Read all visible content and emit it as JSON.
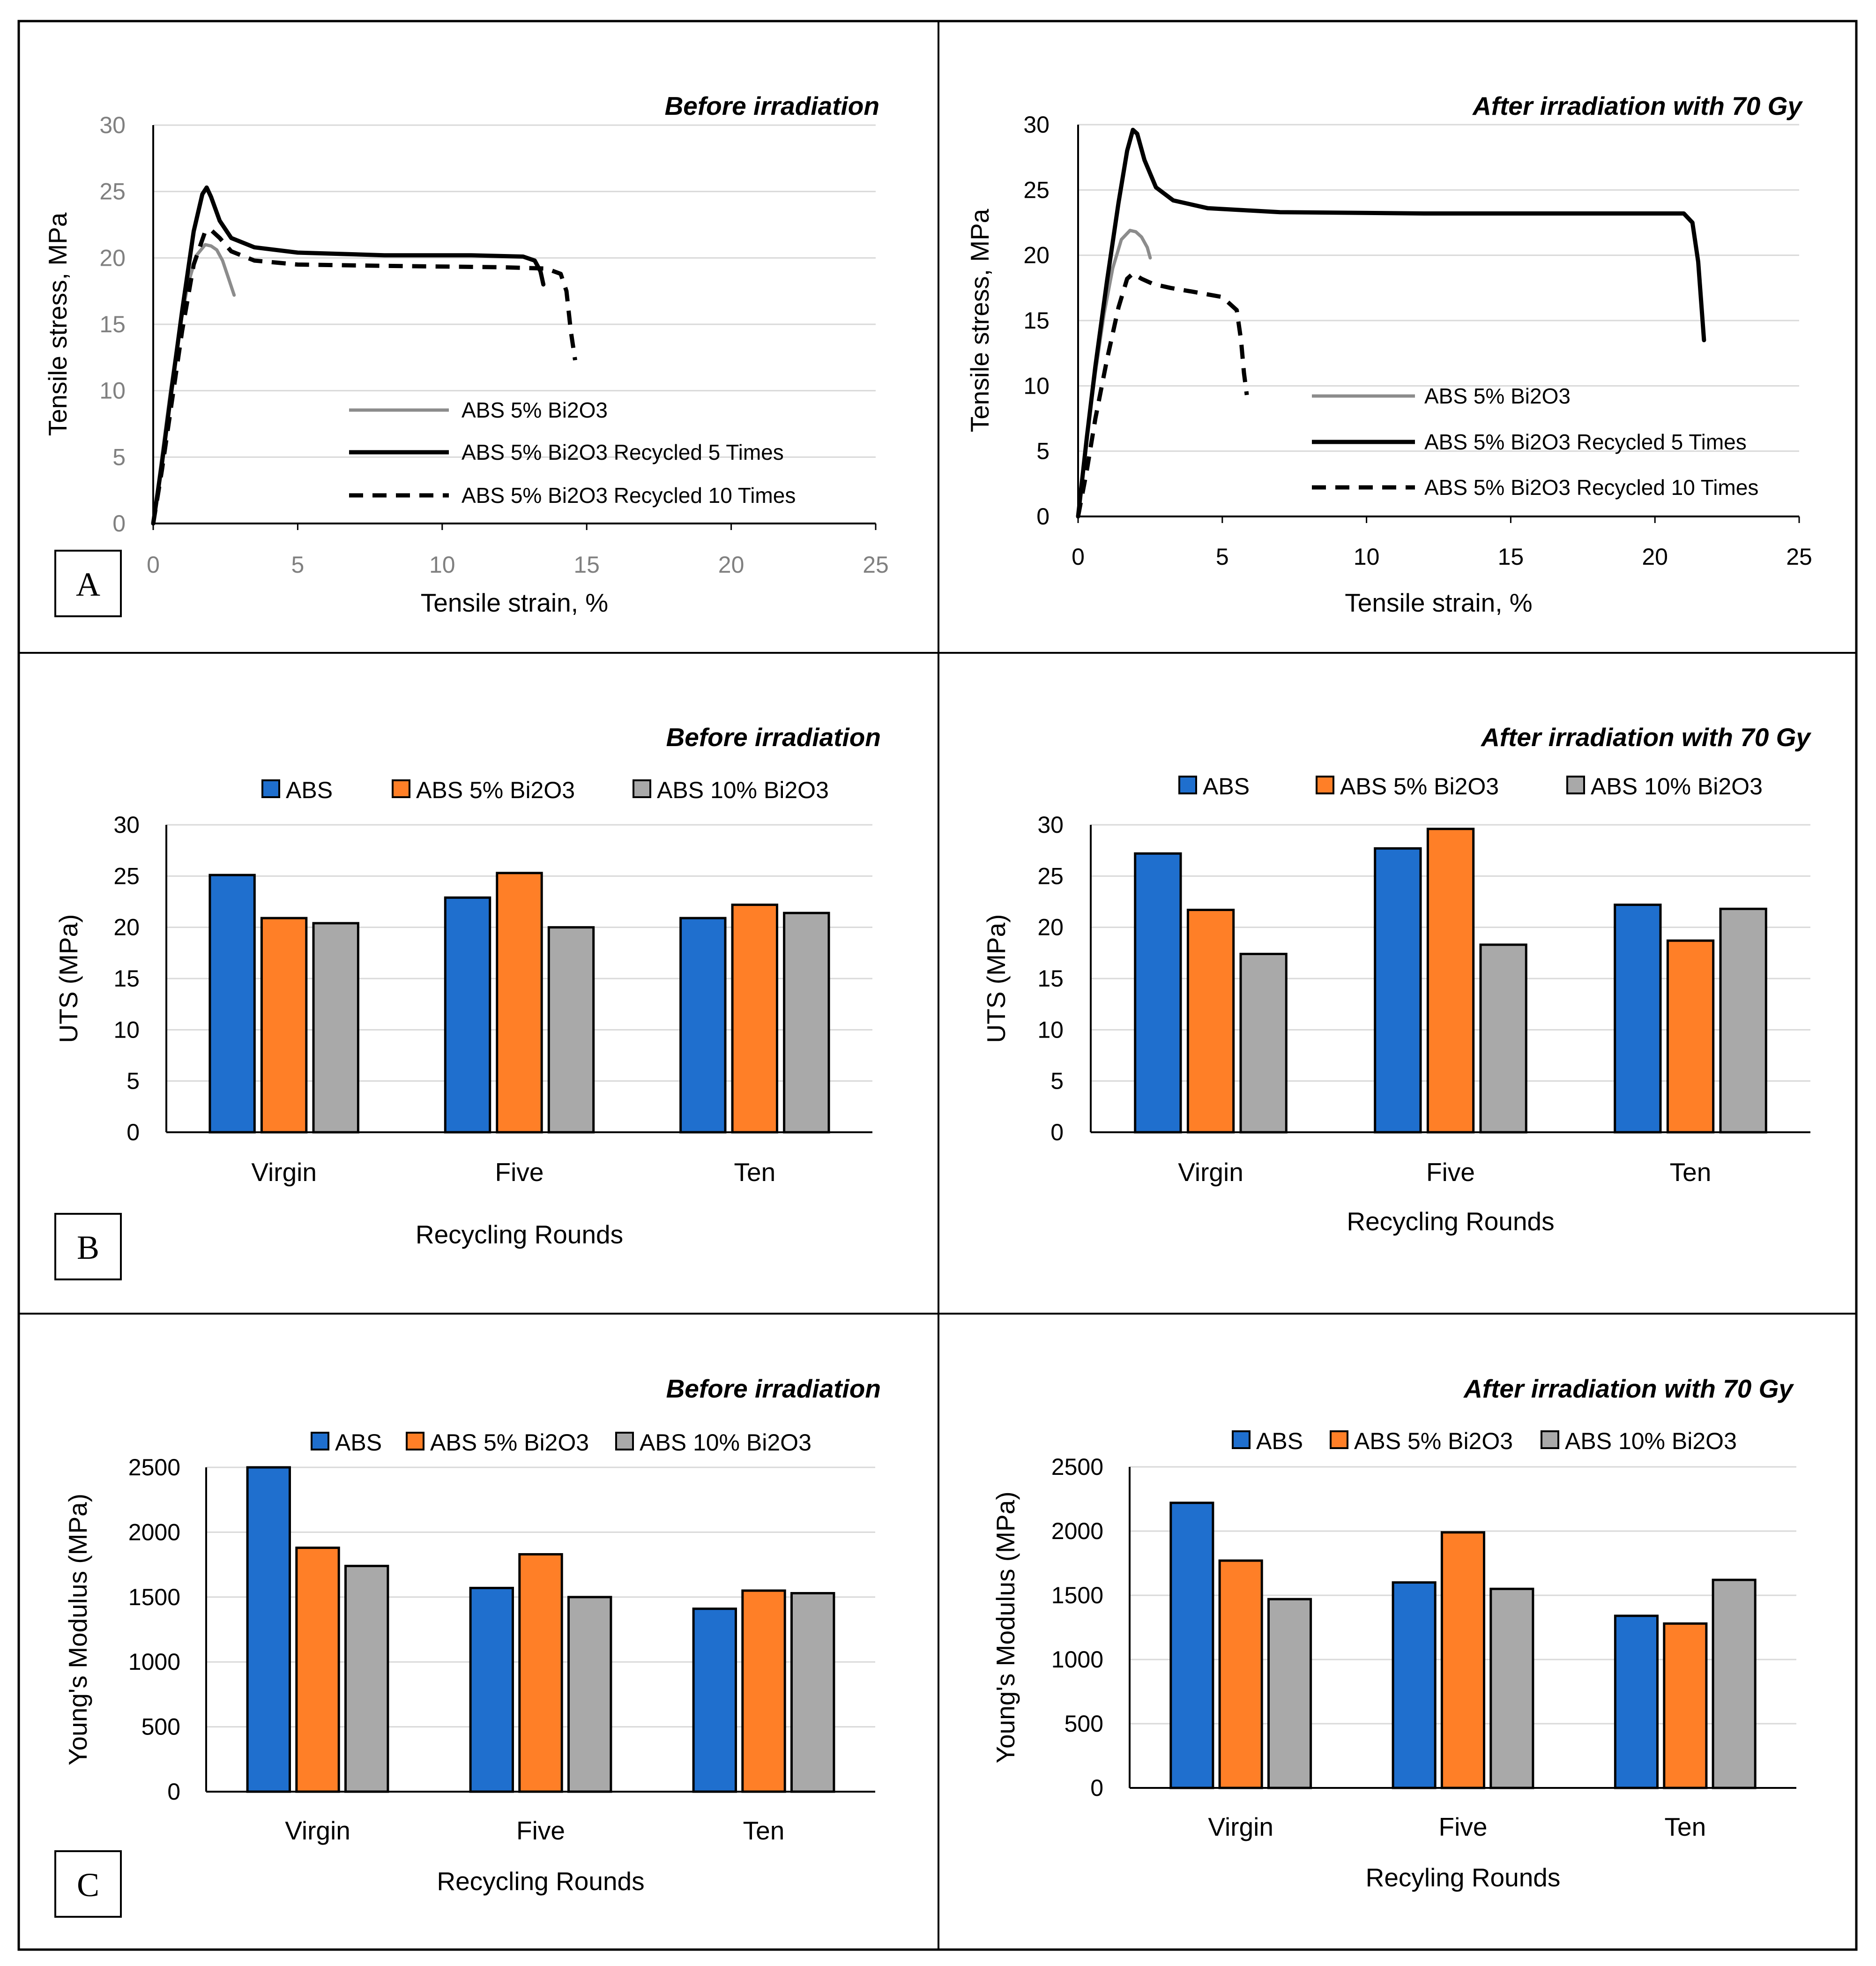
{
  "panel_labels": [
    "A",
    "B",
    "C"
  ],
  "colors": {
    "abs": "#1f6fce",
    "abs5": "#ff7f27",
    "abs10": "#a9a9a9",
    "line_grey": "#8c8c8c",
    "line_black": "#000000",
    "grid": "#d9d9d9",
    "tick_grey": "#808080",
    "tick_dark": "#000000"
  },
  "chart_data": [
    {
      "id": "a-before",
      "type": "line",
      "title": "Before irradiation",
      "xlabel": "Tensile strain, %",
      "ylabel": "Tensile stress, MPa",
      "xlim": [
        0,
        25
      ],
      "ylim": [
        0,
        30
      ],
      "xticks": [
        "0",
        "5",
        "10",
        "15",
        "20",
        "25"
      ],
      "yticks": [
        "0",
        "5",
        "10",
        "15",
        "20",
        "25",
        "30"
      ],
      "series": [
        {
          "name": "ABS 5% Bi2O3",
          "style": "grey",
          "x": [
            0,
            0.3,
            0.6,
            0.9,
            1.2,
            1.5,
            1.8,
            2.0,
            2.2,
            2.4,
            2.6,
            2.8
          ],
          "y": [
            0,
            5,
            10,
            14.5,
            18,
            20.2,
            21,
            20.9,
            20.6,
            19.8,
            18.5,
            17.2
          ]
        },
        {
          "name": "ABS 5% Bi2O3 Recycled 5 Times",
          "style": "solid",
          "x": [
            0,
            0.3,
            0.6,
            1.0,
            1.4,
            1.7,
            1.85,
            2.0,
            2.3,
            2.7,
            3.5,
            5,
            8,
            11,
            12.8,
            13.2,
            13.4,
            13.5
          ],
          "y": [
            0,
            4.5,
            9.5,
            16,
            22,
            24.8,
            25.3,
            24.6,
            22.8,
            21.5,
            20.8,
            20.4,
            20.2,
            20.2,
            20.1,
            19.8,
            19.0,
            18.0
          ]
        },
        {
          "name": "ABS 5% Bi2O3 Recycled 10 Times",
          "style": "dash",
          "x": [
            0,
            0.3,
            0.6,
            1.0,
            1.4,
            1.8,
            2.0,
            2.3,
            2.7,
            3.5,
            5,
            8,
            12,
            13.6,
            14.1,
            14.3,
            14.45,
            14.6
          ],
          "y": [
            0,
            4,
            8.5,
            14.5,
            19.5,
            22.0,
            22.1,
            21.5,
            20.5,
            19.8,
            19.5,
            19.4,
            19.3,
            19.2,
            18.8,
            17.5,
            14.5,
            12.3
          ]
        }
      ]
    },
    {
      "id": "a-after",
      "type": "line",
      "title": "After irradiation with 70 Gy",
      "xlabel": "Tensile strain, %",
      "ylabel": "Tensile stress, MPa",
      "xlim": [
        0,
        25
      ],
      "ylim": [
        0,
        30
      ],
      "xticks": [
        "0",
        "5",
        "10",
        "15",
        "20",
        "25"
      ],
      "yticks": [
        "0",
        "5",
        "10",
        "15",
        "20",
        "25",
        "30"
      ],
      "series": [
        {
          "name": "ABS 5% Bi2O3",
          "style": "grey",
          "x": [
            0,
            0.3,
            0.6,
            0.9,
            1.2,
            1.5,
            1.8,
            2.0,
            2.2,
            2.4,
            2.5
          ],
          "y": [
            0,
            6,
            11,
            15.5,
            19,
            21.2,
            21.9,
            21.8,
            21.4,
            20.6,
            19.8
          ]
        },
        {
          "name": "ABS 5% Bi2O3 Recycled 5 Times",
          "style": "solid",
          "x": [
            0,
            0.3,
            0.6,
            1.0,
            1.4,
            1.7,
            1.9,
            2.05,
            2.3,
            2.7,
            3.3,
            4.5,
            7,
            12,
            18,
            21.0,
            21.3,
            21.5,
            21.6,
            21.7
          ],
          "y": [
            0,
            6,
            11.5,
            18,
            24,
            28,
            29.6,
            29.3,
            27.3,
            25.2,
            24.2,
            23.6,
            23.3,
            23.2,
            23.2,
            23.2,
            22.5,
            19.5,
            16.5,
            13.5
          ]
        },
        {
          "name": "ABS 5% Bi2O3 Recycled 10 Times",
          "style": "dash",
          "x": [
            0,
            0.3,
            0.6,
            1.0,
            1.4,
            1.7,
            1.9,
            2.2,
            2.6,
            3.2,
            4.0,
            5.0,
            5.5,
            5.65,
            5.75,
            5.85
          ],
          "y": [
            0,
            3.5,
            7.5,
            12,
            16,
            18.2,
            18.6,
            18.2,
            17.8,
            17.5,
            17.2,
            16.8,
            15.8,
            13.5,
            11,
            9.3
          ]
        }
      ]
    },
    {
      "id": "b-before",
      "type": "bar",
      "title": "Before irradiation",
      "xlabel": "Recycling Rounds",
      "ylabel": "UTS (MPa)",
      "categories": [
        "Virgin",
        "Five",
        "Ten"
      ],
      "ylim": [
        0,
        30
      ],
      "yticks": [
        "0",
        "5",
        "10",
        "15",
        "20",
        "25",
        "30"
      ],
      "series": [
        {
          "name": "ABS",
          "values": [
            25.1,
            22.9,
            20.9
          ]
        },
        {
          "name": "ABS 5% Bi2O3",
          "values": [
            20.9,
            25.3,
            22.2
          ]
        },
        {
          "name": "ABS 10% Bi2O3",
          "values": [
            20.4,
            20.0,
            21.4
          ]
        }
      ]
    },
    {
      "id": "b-after",
      "type": "bar",
      "title": "After irradiation with 70 Gy",
      "xlabel": "Recycling Rounds",
      "ylabel": "UTS (MPa)",
      "categories": [
        "Virgin",
        "Five",
        "Ten"
      ],
      "ylim": [
        0,
        30
      ],
      "yticks": [
        "0",
        "5",
        "10",
        "15",
        "20",
        "25",
        "30"
      ],
      "series": [
        {
          "name": "ABS",
          "values": [
            27.2,
            27.7,
            22.2
          ]
        },
        {
          "name": "ABS 5% Bi2O3",
          "values": [
            21.7,
            29.6,
            18.7
          ]
        },
        {
          "name": "ABS 10% Bi2O3",
          "values": [
            17.4,
            18.3,
            21.8
          ]
        }
      ]
    },
    {
      "id": "c-before",
      "type": "bar",
      "title": "Before irradiation",
      "xlabel": "Recycling Rounds",
      "ylabel": "Young's Modulus (MPa)",
      "categories": [
        "Virgin",
        "Five",
        "Ten"
      ],
      "ylim": [
        0,
        2500
      ],
      "yticks": [
        "0",
        "500",
        "1000",
        "1500",
        "2000",
        "2500"
      ],
      "series": [
        {
          "name": "ABS",
          "values": [
            2500,
            1570,
            1410
          ]
        },
        {
          "name": "ABS 5% Bi2O3",
          "values": [
            1880,
            1830,
            1550
          ]
        },
        {
          "name": "ABS 10% Bi2O3",
          "values": [
            1740,
            1500,
            1530
          ]
        }
      ]
    },
    {
      "id": "c-after",
      "type": "bar",
      "title": "After irradiation with 70 Gy",
      "xlabel": "Recyling Rounds",
      "ylabel": "Young's Modulus (MPa)",
      "categories": [
        "Virgin",
        "Five",
        "Ten"
      ],
      "ylim": [
        0,
        2500
      ],
      "yticks": [
        "0",
        "500",
        "1000",
        "1500",
        "2000",
        "2500"
      ],
      "series": [
        {
          "name": "ABS",
          "values": [
            2220,
            1600,
            1340
          ]
        },
        {
          "name": "ABS 5% Bi2O3",
          "values": [
            1770,
            1990,
            1280
          ]
        },
        {
          "name": "ABS 10% Bi2O3",
          "values": [
            1470,
            1550,
            1620
          ]
        }
      ]
    }
  ]
}
